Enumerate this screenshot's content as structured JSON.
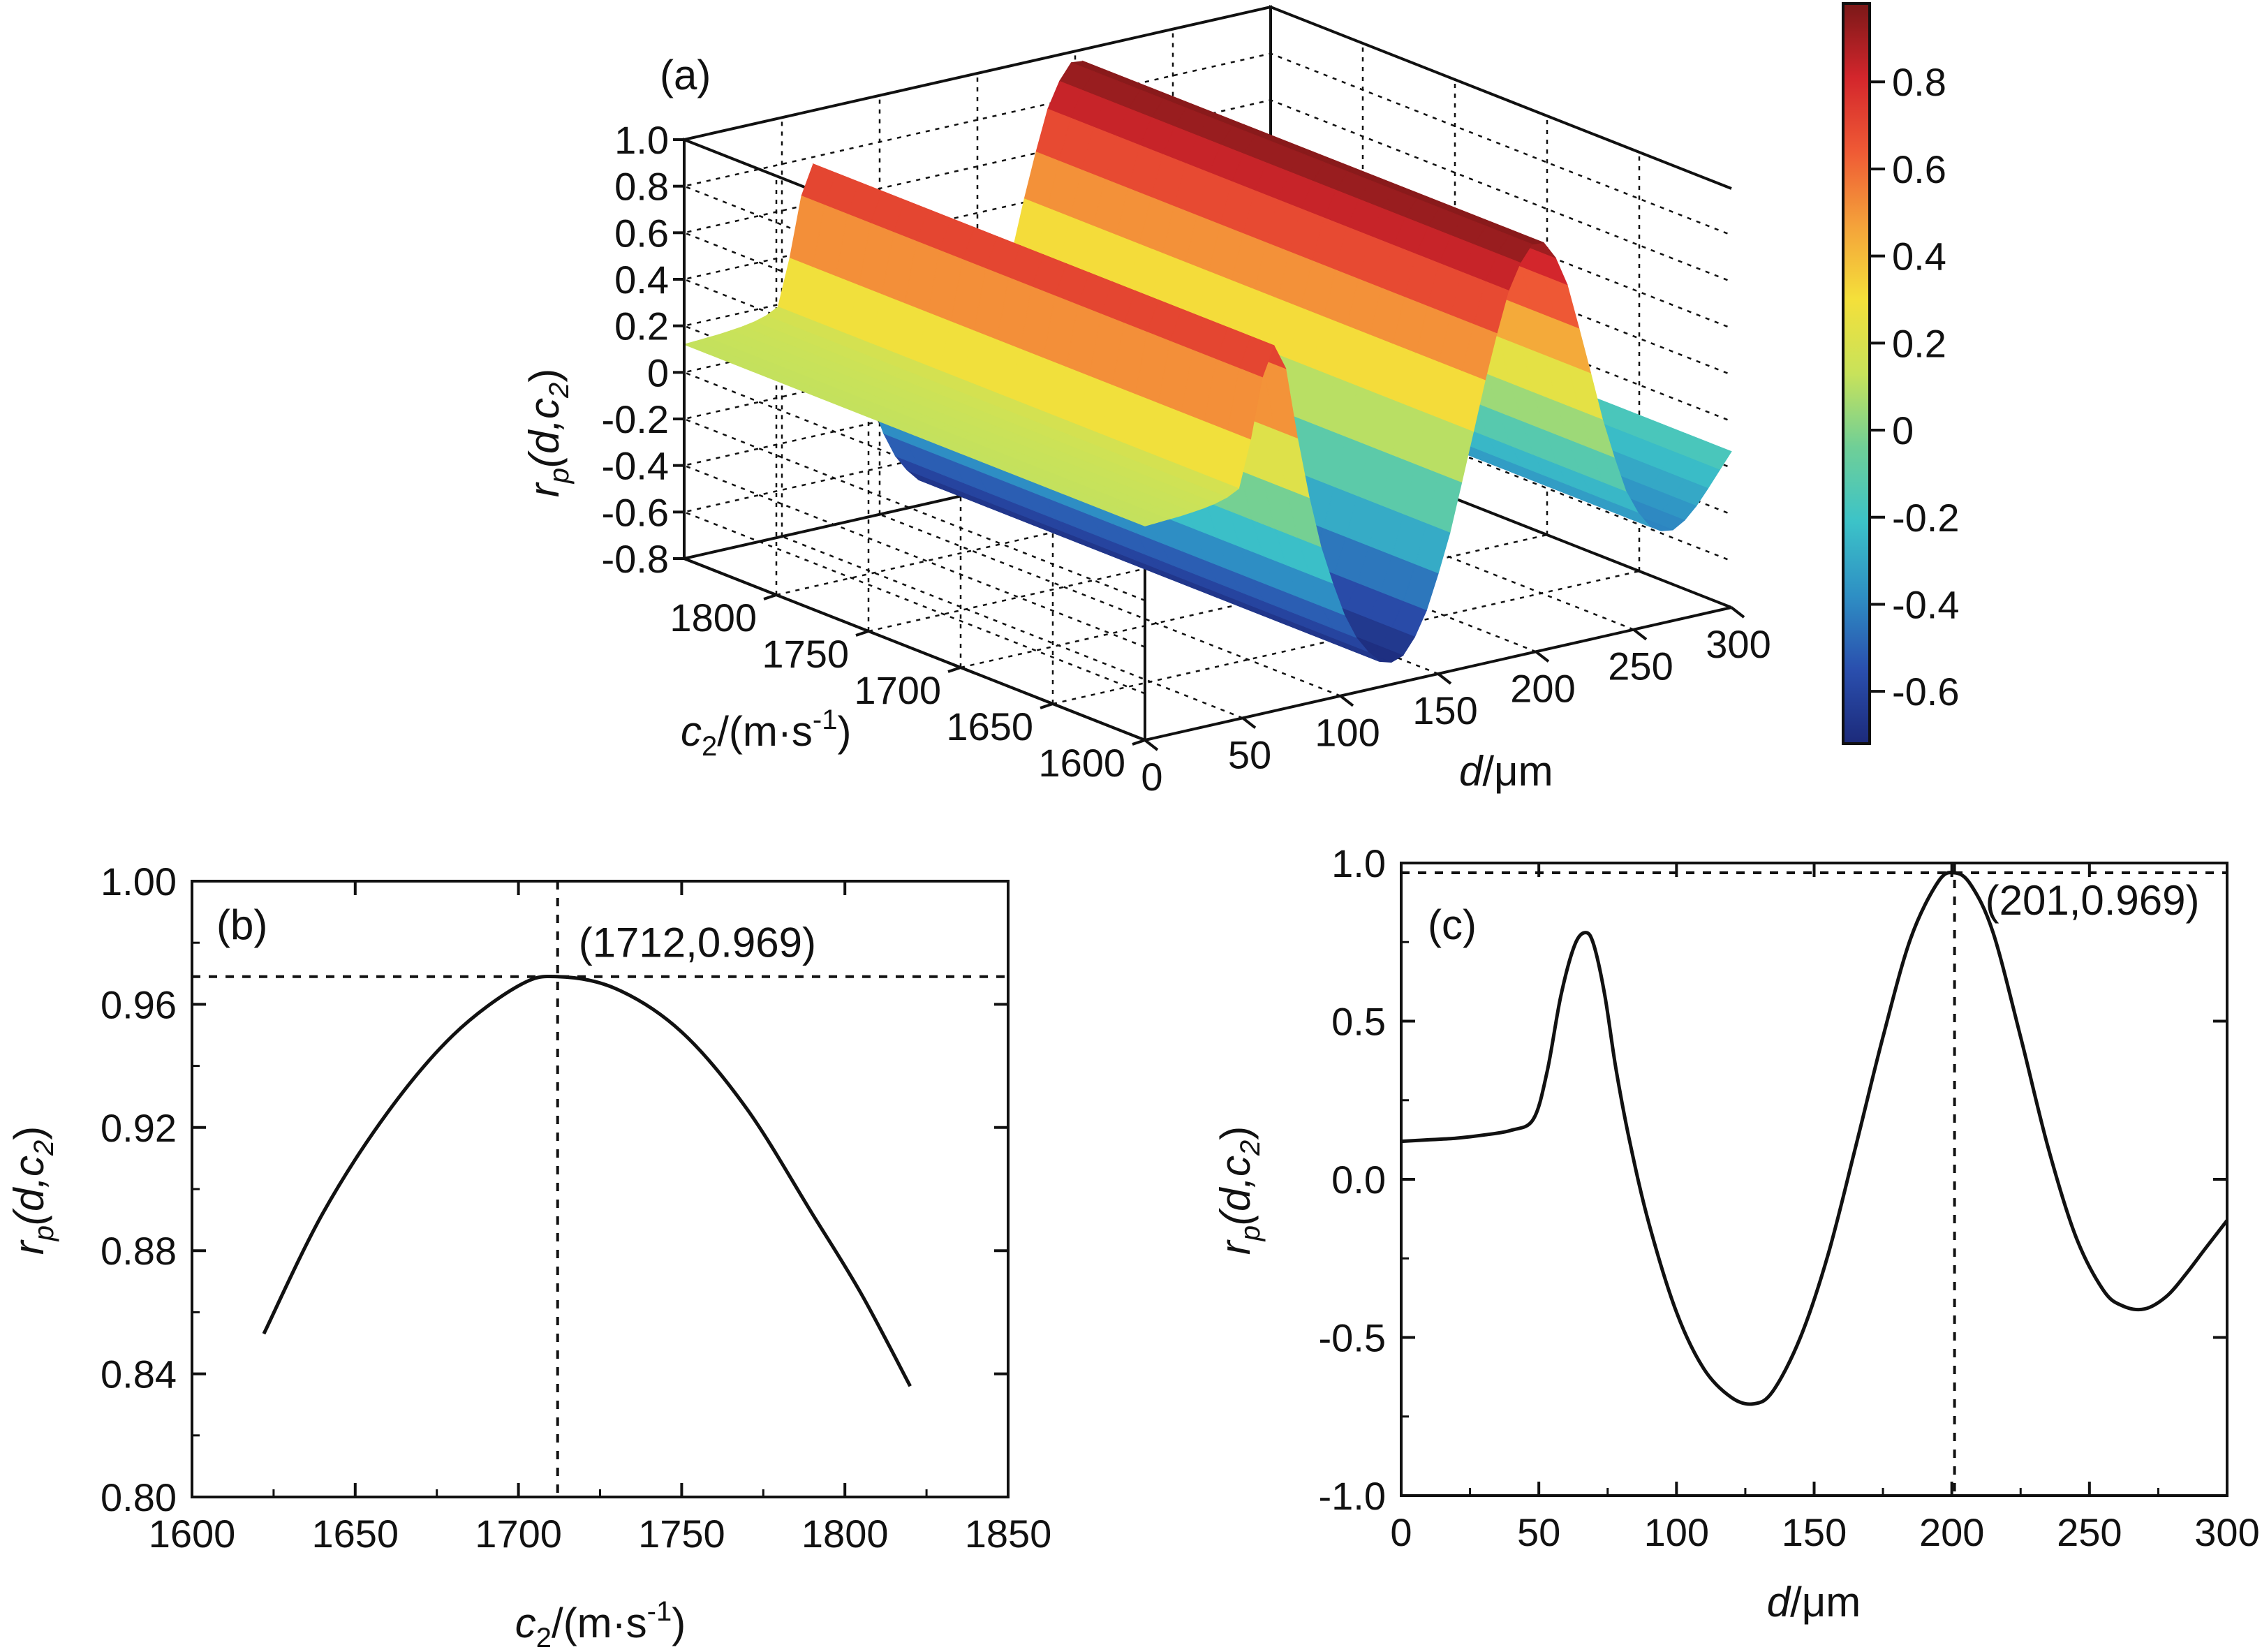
{
  "chart_data": [
    {
      "type": "surface3d",
      "panel_label": "(a)",
      "zlabel_main": "r",
      "zlabel_sub": "p",
      "zlabel_args": "(d,c",
      "zlabel_arg_sub": "2",
      "zlabel_close": ")",
      "xlabel_italic": "d",
      "xlabel_rest": "/μm",
      "ylabel_main": "c",
      "ylabel_sub": "2",
      "ylabel_rest": "/(m·s",
      "ylabel_exp": "-1",
      "ylabel_close": ")",
      "d_ticks": [
        "0",
        "50",
        "100",
        "150",
        "200",
        "250",
        "300"
      ],
      "c2_ticks": [
        "1600",
        "1650",
        "1700",
        "1750",
        "1800"
      ],
      "z_ticks": [
        "-0.8",
        "-0.6",
        "-0.4",
        "-0.2",
        "0",
        "0.2",
        "0.4",
        "0.6",
        "0.8",
        "1.0"
      ],
      "colorbar_ticks": [
        "-0.6",
        "-0.4",
        "-0.2",
        "0",
        "0.2",
        "0.4",
        "0.6",
        "0.8"
      ],
      "colorbar_range": [
        -0.72,
        0.98
      ],
      "colormap": [
        "#1c2a7a",
        "#2a4fae",
        "#2e8fc4",
        "#3cc3c8",
        "#6fcf97",
        "#c8e25a",
        "#f4e03a",
        "#f4a23a",
        "#ef5a35",
        "#d3262c",
        "#7a1818"
      ],
      "d_range": [
        0,
        300
      ],
      "c2_range": [
        1600,
        1850
      ],
      "z_range": [
        -0.8,
        1.0
      ]
    },
    {
      "type": "line",
      "panel_label": "(b)",
      "xlabel_main": "c",
      "xlabel_sub": "2",
      "xlabel_rest": "/(m·s",
      "xlabel_exp": "-1",
      "xlabel_close": ")",
      "ylabel_main": "r",
      "ylabel_sub": "p",
      "ylabel_args": "(d,c",
      "ylabel_arg_sub": "2",
      "ylabel_close": ")",
      "xlim": [
        1600,
        1850
      ],
      "ylim": [
        0.8,
        1.0
      ],
      "xticks": [
        1600,
        1650,
        1700,
        1750,
        1800,
        1850
      ],
      "yticks": [
        0.8,
        0.84,
        0.88,
        0.92,
        0.96,
        1.0
      ],
      "xtick_labels": [
        "1600",
        "1650",
        "1700",
        "1750",
        "1800",
        "1850"
      ],
      "ytick_labels": [
        "0.80",
        "0.84",
        "0.88",
        "0.92",
        "0.96",
        "1.00"
      ],
      "series": [
        {
          "name": "rp vs c2",
          "x": [
            1622,
            1640,
            1660,
            1680,
            1700,
            1712,
            1730,
            1750,
            1770,
            1790,
            1805,
            1820
          ],
          "y": [
            0.853,
            0.892,
            0.925,
            0.95,
            0.966,
            0.969,
            0.965,
            0.951,
            0.926,
            0.892,
            0.866,
            0.836
          ]
        }
      ],
      "annotation": {
        "x": 1712,
        "y": 0.969,
        "text": "(1712,0.969)"
      }
    },
    {
      "type": "line",
      "panel_label": "(c)",
      "xlabel_italic": "d",
      "xlabel_rest": "/μm",
      "ylabel_main": "r",
      "ylabel_sub": "p",
      "ylabel_args": "(d,c",
      "ylabel_arg_sub": "2",
      "ylabel_close": ")",
      "xlim": [
        0,
        300
      ],
      "ylim": [
        -1.0,
        1.0
      ],
      "xticks": [
        0,
        50,
        100,
        150,
        200,
        250,
        300
      ],
      "yticks": [
        -1.0,
        -0.5,
        0.0,
        0.5,
        1.0
      ],
      "xtick_labels": [
        "0",
        "50",
        "100",
        "150",
        "200",
        "250",
        "300"
      ],
      "ytick_labels": [
        "-1.0",
        "-0.5",
        "0.0",
        "0.5",
        "1.0"
      ],
      "series": [
        {
          "name": "rp vs d",
          "x": [
            0,
            10,
            20,
            30,
            40,
            48,
            53,
            58,
            63,
            67,
            70,
            74,
            78,
            83,
            90,
            100,
            110,
            120,
            128,
            135,
            145,
            155,
            165,
            175,
            185,
            195,
            201,
            207,
            215,
            225,
            235,
            245,
            255,
            262,
            270,
            278,
            285,
            292,
            300
          ],
          "y": [
            0.12,
            0.125,
            0.13,
            0.14,
            0.155,
            0.19,
            0.34,
            0.58,
            0.74,
            0.78,
            0.74,
            0.58,
            0.35,
            0.12,
            -0.14,
            -0.42,
            -0.6,
            -0.69,
            -0.71,
            -0.67,
            -0.5,
            -0.24,
            0.1,
            0.45,
            0.76,
            0.94,
            0.969,
            0.93,
            0.78,
            0.45,
            0.1,
            -0.18,
            -0.35,
            -0.4,
            -0.41,
            -0.37,
            -0.3,
            -0.22,
            -0.13
          ]
        }
      ],
      "annotation": {
        "x": 201,
        "y": 0.969,
        "text": "(201,0.969)"
      }
    }
  ]
}
